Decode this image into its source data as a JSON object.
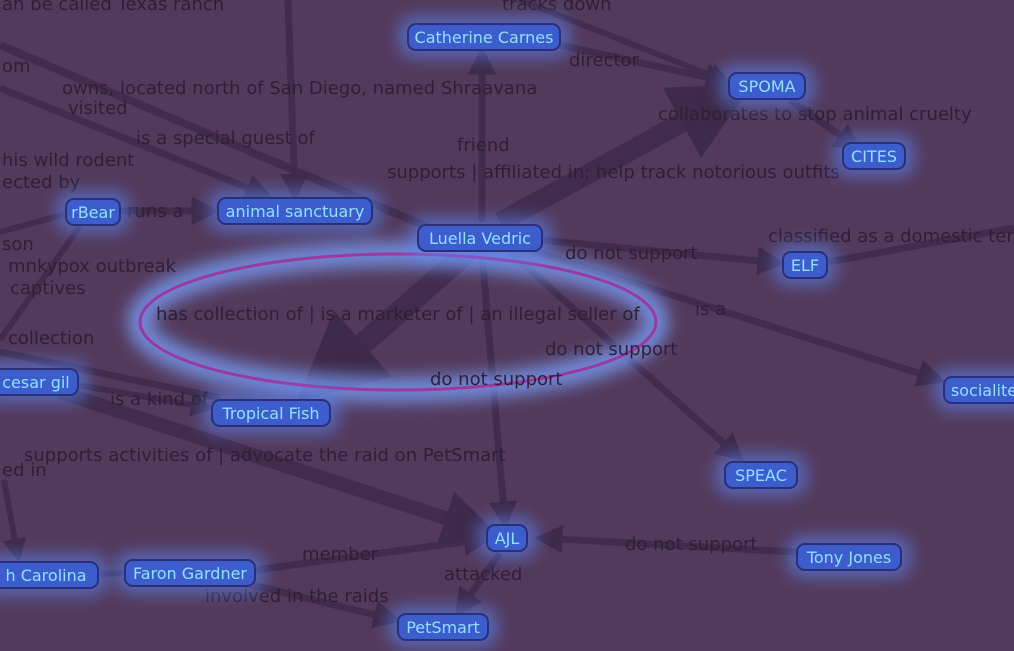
{
  "colors": {
    "background": "#533a5c",
    "node_fill": "#3d5dcc",
    "node_text": "#8fe0ff",
    "edge": "#3e2a4a",
    "edge_text": "#2e1f36",
    "glow": "#5b8bff",
    "selection_ring": "#9a3aa0"
  },
  "nodes": [
    {
      "id": "catherine",
      "label": "Catherine Carnes"
    },
    {
      "id": "spoma",
      "label": "SPOMA"
    },
    {
      "id": "cites",
      "label": "CITES"
    },
    {
      "id": "rbear",
      "label": "rBear"
    },
    {
      "id": "sanctuary",
      "label": "animal sanctuary"
    },
    {
      "id": "luella",
      "label": "Luella Vedric"
    },
    {
      "id": "elf",
      "label": "ELF"
    },
    {
      "id": "cesar",
      "label": "cesar gil"
    },
    {
      "id": "tropical",
      "label": "Tropical Fish"
    },
    {
      "id": "socialite",
      "label": "socialite"
    },
    {
      "id": "speac",
      "label": "SPEAC"
    },
    {
      "id": "ajl",
      "label": "AJL"
    },
    {
      "id": "tony",
      "label": "Tony Jones"
    },
    {
      "id": "carolina",
      "label": "h Carolina"
    },
    {
      "id": "faron",
      "label": "Faron Gardner"
    },
    {
      "id": "petsmart",
      "label": "PetSmart"
    }
  ],
  "edge_labels": [
    "an be called Texas ranch",
    "tracks down",
    "director",
    "om",
    "owns, located north of San Diego, named Shraavana",
    "visited",
    "collaborates to stop animal cruelty",
    "is a special guest of",
    "friend",
    "his wild rodent",
    "supports | affiliated in; help track notorious outfits",
    "ected by",
    "runs a",
    "classified as a domestic ter",
    "son",
    "do not support",
    "mnkypox outbreak",
    "captives",
    "has collection of | is a marketer of | an illegal seller of",
    "is a",
    "collection",
    "do not support",
    "do not support",
    "is a kind of",
    "supports activities of | advocate the raid on PetSmart",
    "ed in",
    "do not support",
    "member",
    "attacked",
    "involved in the raids"
  ]
}
